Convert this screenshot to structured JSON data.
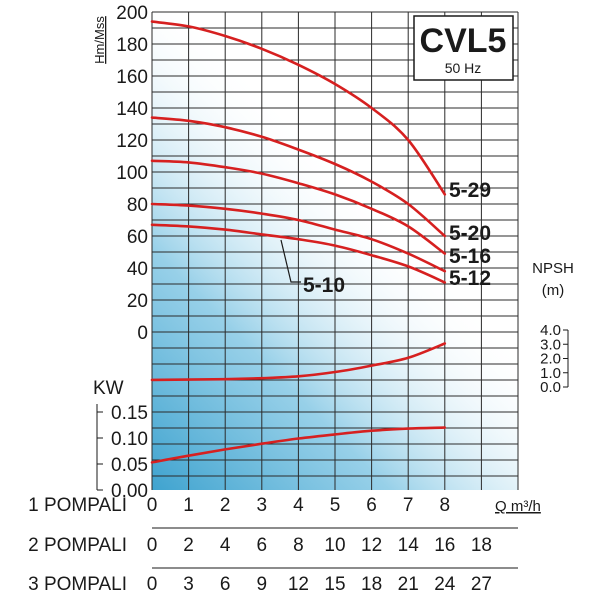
{
  "title": "CVL5",
  "subtitle": "50 Hz",
  "chart_data": {
    "type": "line",
    "head_axis": {
      "label": "Hm/Mss",
      "ticks": [
        0,
        20,
        40,
        60,
        80,
        100,
        120,
        140,
        160,
        180,
        200
      ],
      "ylim": [
        0,
        200
      ]
    },
    "npsh_axis": {
      "label_line1": "NPSH",
      "label_line2": "(m)",
      "ticks": [
        "0.0",
        "1.0",
        "2.0",
        "3.0",
        "4.0"
      ],
      "ylim": [
        0,
        4
      ]
    },
    "power_axis": {
      "label": "KW",
      "ticks": [
        "0.00",
        "0.05",
        "0.10",
        "0.15"
      ],
      "ylim": [
        0,
        0.15
      ]
    },
    "x_axis": {
      "label": "Q m³/h",
      "ticks": [
        "0",
        "1",
        "2",
        "3",
        "4",
        "5",
        "6",
        "7",
        "8"
      ],
      "xlim": [
        0,
        9.5
      ]
    },
    "pump_scales": [
      {
        "label": "1 POMPALI",
        "ticks": [
          "0",
          "1",
          "2",
          "3",
          "4",
          "5",
          "6",
          "7",
          "8"
        ]
      },
      {
        "label": "2 POMPALI",
        "ticks": [
          "0",
          "2",
          "4",
          "6",
          "8",
          "10",
          "12",
          "14",
          "16",
          "18"
        ]
      },
      {
        "label": "3 POMPALI",
        "ticks": [
          "0",
          "3",
          "6",
          "9",
          "12",
          "15",
          "18",
          "21",
          "24",
          "27"
        ]
      }
    ],
    "head_series": [
      {
        "name": "5-29",
        "x": [
          0,
          1,
          2,
          3,
          4,
          5,
          6,
          7,
          8
        ],
        "y": [
          194,
          191,
          185,
          177,
          167,
          155,
          140,
          120,
          86
        ]
      },
      {
        "name": "5-20",
        "x": [
          0,
          1,
          2,
          3,
          4,
          5,
          6,
          7,
          8
        ],
        "y": [
          134,
          132,
          128,
          122,
          114,
          105,
          94,
          80,
          60
        ]
      },
      {
        "name": "5-16",
        "x": [
          0,
          1,
          2,
          3,
          4,
          5,
          6,
          7,
          8
        ],
        "y": [
          107,
          106,
          103,
          99,
          93,
          86,
          77,
          66,
          49
        ]
      },
      {
        "name": "5-12",
        "x": [
          0,
          1,
          2,
          3,
          4,
          5,
          6,
          7,
          8
        ],
        "y": [
          80,
          79,
          77,
          74,
          70,
          64,
          58,
          49,
          38
        ]
      },
      {
        "name": "5-10",
        "x": [
          0,
          1,
          2,
          3,
          4,
          5,
          6,
          7,
          8
        ],
        "y": [
          67,
          66,
          64,
          61,
          58,
          54,
          48,
          41,
          31
        ]
      }
    ],
    "npsh_series": {
      "x": [
        0,
        1,
        2,
        3,
        4,
        5,
        6,
        7,
        8
      ],
      "y": [
        0.5,
        0.52,
        0.55,
        0.62,
        0.75,
        1.05,
        1.5,
        2.05,
        3.05
      ]
    },
    "power_series": {
      "x": [
        0,
        1,
        2,
        3,
        4,
        5,
        6,
        7,
        8
      ],
      "y": [
        0.053,
        0.066,
        0.078,
        0.089,
        0.099,
        0.107,
        0.114,
        0.118,
        0.12
      ]
    },
    "grid": true,
    "colors": {
      "curves": "#d62020",
      "series_labels": "#1f5f9a",
      "axis_titles": "#d62020",
      "background_gradient": "#3fa3cf"
    }
  }
}
